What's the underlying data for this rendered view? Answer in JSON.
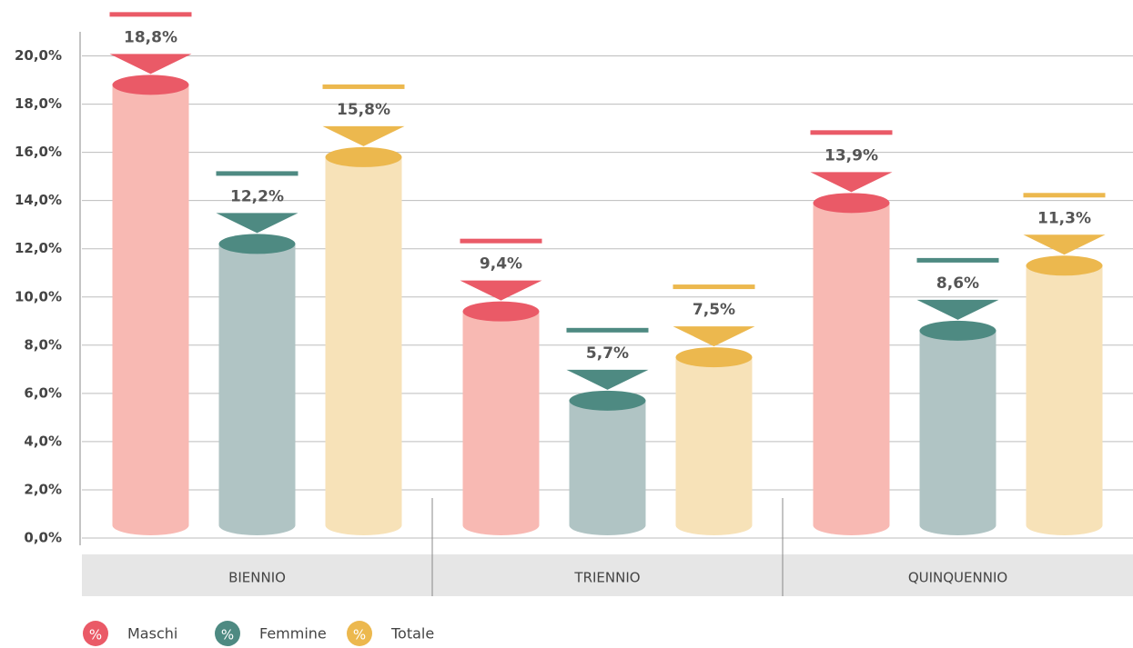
{
  "chart_data": {
    "type": "cylinder-bar",
    "categories": [
      "BIENNIO",
      "TRIENNIO",
      "QUINQUENNIO"
    ],
    "series": [
      {
        "name": "Maschi",
        "color": "#ea5a67",
        "body_color": "#f8b9b3",
        "values": [
          18.8,
          9.4,
          13.9
        ],
        "value_labels": [
          "18,8%",
          "9,4%",
          "13,9%"
        ]
      },
      {
        "name": "Femmine",
        "color": "#4e8a82",
        "body_color": "#b0c4c4",
        "values": [
          12.2,
          5.7,
          8.6
        ],
        "value_labels": [
          "12,2%",
          "5,7%",
          "8,6%"
        ]
      },
      {
        "name": "Totale",
        "color": "#ecb84e",
        "body_color": "#f7e2b8",
        "values": [
          15.8,
          7.5,
          11.3
        ],
        "value_labels": [
          "15,8%",
          "7,5%",
          "11,3%"
        ]
      }
    ],
    "legend_symbol": "%",
    "ylim": [
      0,
      21
    ],
    "yticks": [
      {
        "value": 0,
        "label": "0,0%"
      },
      {
        "value": 2,
        "label": "2,0%"
      },
      {
        "value": 4,
        "label": "4,0%"
      },
      {
        "value": 6,
        "label": "6,0%"
      },
      {
        "value": 8,
        "label": "8,0%"
      },
      {
        "value": 10,
        "label": "10,0%"
      },
      {
        "value": 12,
        "label": "12,0%"
      },
      {
        "value": 14,
        "label": "14,0%"
      },
      {
        "value": 16,
        "label": "16,0%"
      },
      {
        "value": 18,
        "label": "18,0%"
      },
      {
        "value": 20,
        "label": "20,0%"
      }
    ],
    "grid": true
  }
}
